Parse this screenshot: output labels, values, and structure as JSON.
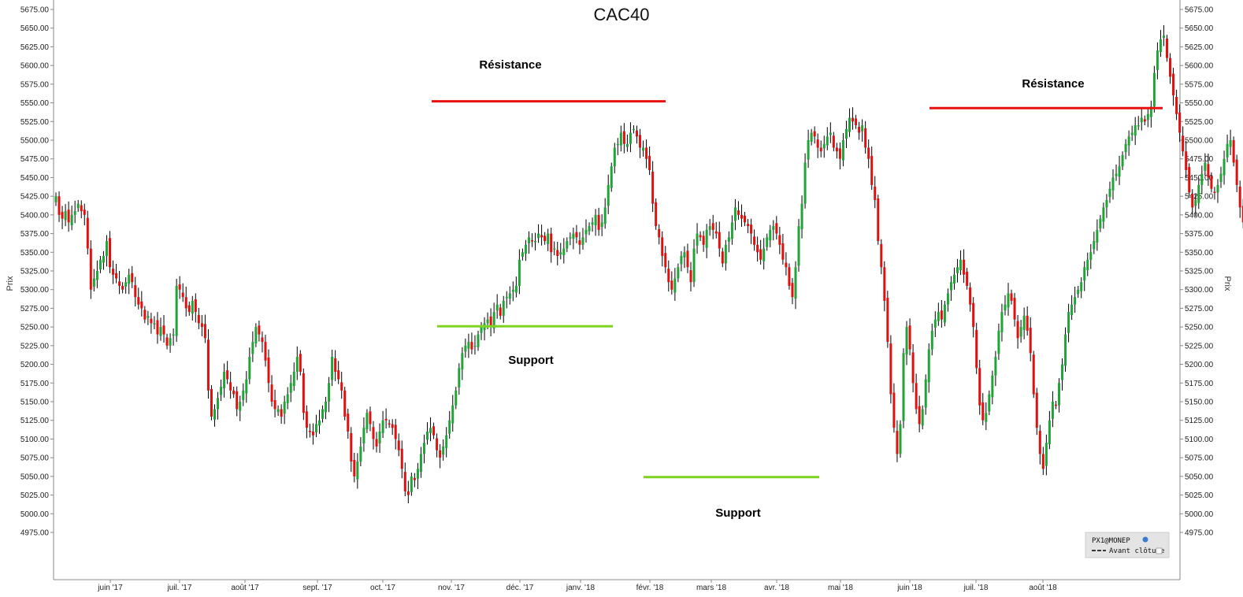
{
  "chart_data": {
    "type": "candlestick",
    "title": "CAC40",
    "ylabel": "Prix",
    "ylim": [
      4950,
      5685
    ],
    "y_ticks": [
      "5675.00",
      "5650.00",
      "5625.00",
      "5600.00",
      "5575.00",
      "5550.00",
      "5525.00",
      "5500.00",
      "5475.00",
      "5450.00",
      "5425.00",
      "5400.00",
      "5375.00",
      "5350.00",
      "5325.00",
      "5300.00",
      "5275.00",
      "5250.00",
      "5225.00",
      "5200.00",
      "5175.00",
      "5150.00",
      "5125.00",
      "5100.00",
      "5075.00",
      "5050.00",
      "5025.00",
      "5000.00",
      "4975.00"
    ],
    "x_ticks": [
      "juin '17",
      "juil. '17",
      "août '17",
      "sept. '17",
      "oct. '17",
      "nov. '17",
      "déc. '17",
      "janv. '18",
      "févr. '18",
      "mars '18",
      "avr. '18",
      "mai '18",
      "juin '18",
      "juil. '18",
      "août '18"
    ],
    "series": [
      {
        "close": [
          5425,
          5400,
          5395,
          5405,
          5390,
          5400,
          5405,
          5415,
          5405,
          5400,
          5355,
          5300,
          5315,
          5325,
          5340,
          5345,
          5365,
          5330,
          5320,
          5315,
          5305,
          5300,
          5310,
          5320,
          5310,
          5290,
          5280,
          5275,
          5260,
          5265,
          5255,
          5255,
          5240,
          5250,
          5240,
          5225,
          5235,
          5240,
          5305,
          5300,
          5290,
          5275,
          5270,
          5285,
          5270,
          5255,
          5250,
          5235,
          5165,
          5130,
          5140,
          5155,
          5170,
          5190,
          5180,
          5165,
          5160,
          5140,
          5150,
          5165,
          5180,
          5210,
          5230,
          5250,
          5240,
          5230,
          5205,
          5175,
          5150,
          5140,
          5140,
          5130,
          5150,
          5160,
          5175,
          5190,
          5210,
          5190,
          5135,
          5115,
          5110,
          5105,
          5120,
          5125,
          5140,
          5150,
          5175,
          5210,
          5190,
          5180,
          5165,
          5130,
          5110,
          5070,
          5050,
          5070,
          5090,
          5115,
          5135,
          5120,
          5100,
          5090,
          5110,
          5125,
          5125,
          5120,
          5115,
          5100,
          5085,
          5060,
          5030,
          5025,
          5050,
          5045,
          5060,
          5080,
          5095,
          5110,
          5115,
          5105,
          5085,
          5075,
          5090,
          5105,
          5125,
          5145,
          5165,
          5195,
          5215,
          5225,
          5230,
          5220,
          5225,
          5240,
          5250,
          5255,
          5260,
          5250,
          5270,
          5280,
          5265,
          5285,
          5290,
          5295,
          5300,
          5305,
          5340,
          5350,
          5360,
          5370,
          5365,
          5365,
          5375,
          5370,
          5365,
          5375,
          5350,
          5355,
          5345,
          5350,
          5355,
          5365,
          5370,
          5375,
          5370,
          5360,
          5370,
          5380,
          5385,
          5390,
          5400,
          5380,
          5390,
          5410,
          5440,
          5465,
          5490,
          5495,
          5510,
          5495,
          5495,
          5510,
          5515,
          5505,
          5490,
          5490,
          5475,
          5460,
          5415,
          5385,
          5370,
          5345,
          5330,
          5310,
          5300,
          5315,
          5330,
          5345,
          5350,
          5330,
          5310,
          5355,
          5375,
          5370,
          5360,
          5380,
          5385,
          5380,
          5375,
          5355,
          5335,
          5360,
          5370,
          5390,
          5410,
          5400,
          5395,
          5390,
          5385,
          5375,
          5360,
          5350,
          5340,
          5355,
          5370,
          5380,
          5385,
          5375,
          5360,
          5340,
          5330,
          5305,
          5290,
          5330,
          5385,
          5415,
          5470,
          5500,
          5510,
          5505,
          5490,
          5485,
          5495,
          5505,
          5510,
          5490,
          5485,
          5475,
          5500,
          5515,
          5530,
          5525,
          5520,
          5510,
          5520,
          5490,
          5475,
          5440,
          5420,
          5365,
          5330,
          5285,
          5230,
          5160,
          5115,
          5080,
          5120,
          5215,
          5250,
          5220,
          5175,
          5140,
          5120,
          5140,
          5180,
          5220,
          5245,
          5260,
          5270,
          5260,
          5280,
          5295,
          5310,
          5320,
          5330,
          5340,
          5320,
          5305,
          5280,
          5250,
          5195,
          5145,
          5125,
          5135,
          5160,
          5185,
          5210,
          5245,
          5270,
          5280,
          5295,
          5285,
          5260,
          5235,
          5250,
          5265,
          5245,
          5215,
          5160,
          5115,
          5080,
          5060,
          5095,
          5125,
          5150,
          5145,
          5175,
          5200,
          5240,
          5270,
          5280,
          5290,
          5300,
          5310,
          5330,
          5340,
          5350,
          5365,
          5380,
          5395,
          5410,
          5420,
          5435,
          5450,
          5455,
          5465,
          5480,
          5495,
          5505,
          5510,
          5520,
          5520,
          5530,
          5525,
          5535,
          5545,
          5590,
          5620,
          5635,
          5640,
          5610,
          5585,
          5560,
          5535,
          5510,
          5485,
          5460,
          5430,
          5410,
          5420,
          5440,
          5455,
          5470,
          5450,
          5435,
          5430,
          5440,
          5455,
          5475,
          5495,
          5500,
          5470,
          5440,
          5410,
          5390,
          5370,
          5350,
          5325,
          5300,
          5285,
          5280,
          5290,
          5310,
          5320,
          5310,
          5280,
          5255,
          5280,
          5310,
          5340,
          5370,
          5395,
          5410,
          5405,
          5385,
          5370,
          5345,
          5360,
          5390,
          5410,
          5425,
          5415,
          5400,
          5380,
          5375,
          5400,
          5430,
          5460,
          5480,
          5500,
          5490,
          5470,
          5465,
          5480,
          5495,
          5510,
          5505,
          5480,
          5440,
          5405,
          5385,
          5360,
          5320,
          5310,
          5330,
          5350,
          5375,
          5395,
          5405
        ]
      }
    ],
    "annotations": [
      {
        "label": "Résistance",
        "kind": "resistance",
        "y": 5552,
        "x_start": "26 oct. 2017",
        "x_end": "5 févr. 2018"
      },
      {
        "label": "Support",
        "kind": "support",
        "y": 5251,
        "x_start": "27 oct. 2017",
        "x_end": "5 janv. 2018"
      },
      {
        "label": "Support",
        "kind": "support",
        "y": 5049,
        "x_start": "2 févr. 2018",
        "x_end": "20 avr. 2018"
      },
      {
        "label": "Résistance",
        "kind": "resistance",
        "y": 5543,
        "x_start": "4 juin 2018",
        "x_end": "24 août 2018"
      }
    ],
    "colors": {
      "up": "#22a33a",
      "down": "#e01010",
      "wick": "#000000",
      "resistance": "#e81010",
      "support": "#7ed321"
    },
    "grid": false,
    "legend_position": "bottom-right"
  },
  "legend": {
    "source": "PX1@MONEP",
    "item": "Avant clôture"
  }
}
